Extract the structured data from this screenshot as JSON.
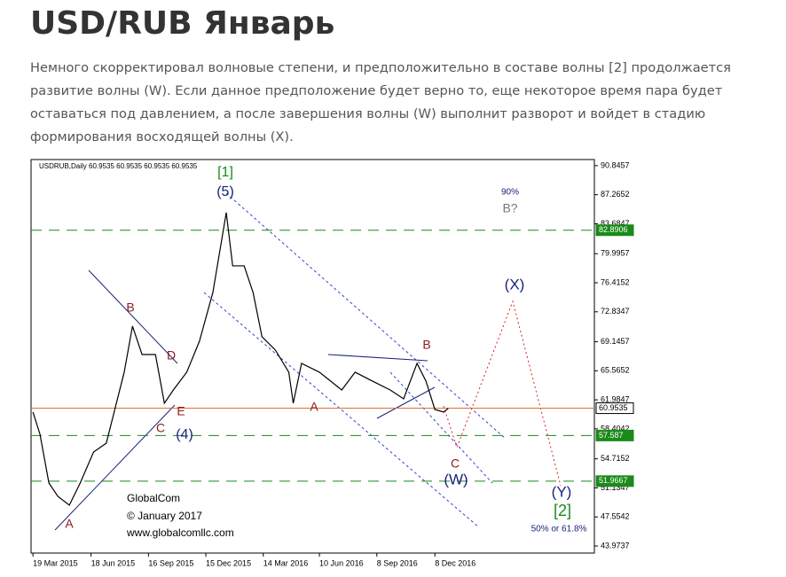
{
  "header": {
    "title_main": "USD/RUB",
    "title_accent": "Январь",
    "paragraph": "Немного скорректировал волновые степени, и предположительно в составе волны [2] продолжается развитие волны (W). Если данное предположение будет верно то, еще некоторое время пара будет оставаться под давлением, а после завершения волны (W) выполнит разворот и войдет в стадию формирования восходящей волны (X)."
  },
  "chart_data": {
    "type": "line",
    "symbol": "USDRUB,Daily  60.9535 60.9535 60.9535 60.9535",
    "xlim": [
      "2015-03-16",
      "2017-08-15"
    ],
    "xticks": [
      {
        "value": "2015-03-19",
        "label": "19 Mar 2015"
      },
      {
        "value": "2015-06-18",
        "label": "18 Jun 2015"
      },
      {
        "value": "2015-09-16",
        "label": "16 Sep 2015"
      },
      {
        "value": "2015-12-15",
        "label": "15 Dec 2015"
      },
      {
        "value": "2016-03-14",
        "label": "14 Mar 2016"
      },
      {
        "value": "2016-06-10",
        "label": "10 Jun 2016"
      },
      {
        "value": "2016-09-08",
        "label": "8 Sep 2016"
      },
      {
        "value": "2016-12-08",
        "label": "8 Dec 2016"
      }
    ],
    "ylim": [
      43.1,
      91.6
    ],
    "yticks": [
      90.8457,
      87.2652,
      83.6847,
      79.9957,
      76.4152,
      72.8347,
      69.1457,
      65.5652,
      61.9847,
      58.4042,
      54.7152,
      51.1347,
      47.5542,
      43.9737
    ],
    "series": [
      {
        "color": "#000000",
        "x": [
          "2015-03-19",
          "2015-03-30",
          "2015-04-13",
          "2015-04-27",
          "2015-05-15",
          "2015-06-01",
          "2015-06-22",
          "2015-07-12",
          "2015-07-26",
          "2015-08-09",
          "2015-08-22",
          "2015-09-06",
          "2015-09-27",
          "2015-10-11",
          "2015-10-25",
          "2015-11-15",
          "2015-12-05",
          "2015-12-26",
          "2016-01-16",
          "2016-01-26",
          "2016-02-13",
          "2016-02-27",
          "2016-03-12",
          "2016-04-02",
          "2016-04-23",
          "2016-04-30",
          "2016-05-13",
          "2016-06-10",
          "2016-07-15",
          "2016-08-05",
          "2016-09-01",
          "2016-09-29",
          "2016-10-20",
          "2016-11-10",
          "2016-11-24",
          "2016-12-08",
          "2016-12-22",
          "2016-12-29"
        ],
        "values": [
          60.47,
          57.74,
          51.73,
          50.09,
          49.0,
          51.73,
          55.55,
          56.65,
          61.02,
          65.39,
          71.07,
          67.57,
          67.57,
          61.57,
          63.2,
          65.39,
          69.22,
          75.22,
          85.06,
          78.5,
          78.5,
          75.22,
          69.76,
          68.12,
          65.39,
          61.57,
          66.48,
          65.39,
          63.2,
          65.39,
          64.3,
          63.2,
          62.11,
          66.48,
          64.3,
          60.8,
          60.47,
          60.9535
        ]
      }
    ],
    "levels": [
      {
        "value": 82.8906,
        "color": "#1a8a1a"
      },
      {
        "value": 60.9535,
        "color": "#e07030"
      },
      {
        "value": 57.587,
        "color": "#1a8a1a"
      },
      {
        "value": 51.9667,
        "color": "#1a8a1a"
      }
    ],
    "annotations": [
      {
        "text": "[1]",
        "color": "#1a8a1a"
      },
      {
        "text": "(5)",
        "color": "#1a237e"
      },
      {
        "text": "90%",
        "color": "#1a237e"
      },
      {
        "text": "B?",
        "color": "#777777"
      },
      {
        "text": "(X)",
        "color": "#1a237e"
      },
      {
        "text": "B",
        "color": "#8b1a1a"
      },
      {
        "text": "B",
        "color": "#8b1a1a"
      },
      {
        "text": "D",
        "color": "#8b1a1a"
      },
      {
        "text": "C",
        "color": "#8b1a1a"
      },
      {
        "text": "E",
        "color": "#8b1a1a"
      },
      {
        "text": "(4)",
        "color": "#1a237e"
      },
      {
        "text": "A",
        "color": "#8b1a1a"
      },
      {
        "text": "A",
        "color": "#8b1a1a"
      },
      {
        "text": "C",
        "color": "#8b1a1a"
      },
      {
        "text": "(W)",
        "color": "#1a237e"
      },
      {
        "text": "(Y)",
        "color": "#1a237e"
      },
      {
        "text": "[2]",
        "color": "#1a8a1a"
      },
      {
        "text": "50% or 61.8%",
        "color": "#1a237e"
      },
      {
        "text": "GlobalCom",
        "color": "#000000"
      },
      {
        "text": "© January 2017",
        "color": "#000000"
      },
      {
        "text": "www.globalcomllc.com",
        "color": "#000000"
      }
    ]
  }
}
